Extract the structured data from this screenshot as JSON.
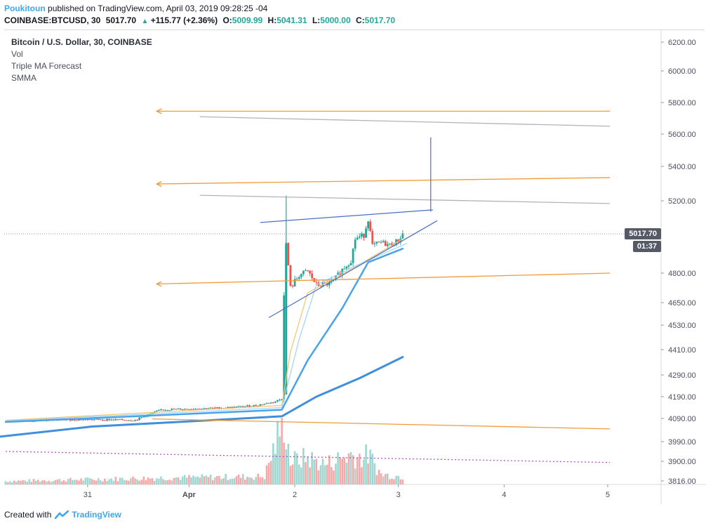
{
  "header": {
    "author": "Poukitoun",
    "published": "published on TradingView.com, April 03, 2019 09:28:25 -04",
    "symbol": "COINBASE:BTCUSD, 30",
    "last": "5017.70",
    "change": "+115.77 (+2.36%)",
    "o_label": "O:",
    "o_value": "5009.99",
    "h_label": "H:",
    "h_value": "5041.31",
    "l_label": "L:",
    "l_value": "5000.00",
    "c_label": "C:",
    "c_value": "5017.70"
  },
  "legend": {
    "title": "Bitcoin / U.S. Dollar, 30, COINBASE",
    "items": [
      "Vol",
      "Triple MA Forecast",
      "SMMA"
    ]
  },
  "price_badge": "5017.70",
  "time_badge": "01:37",
  "footer": {
    "created_with": "Created with",
    "brand": "TradingView"
  },
  "colors": {
    "up": "#26a69a",
    "down": "#ef5350",
    "ma_fast": "#f5c26b",
    "ma_mid": "#9fd3f7",
    "ma_slow": "#4aa3e8",
    "smma": "#3f8fdc",
    "orange_lines": "#f29a38",
    "gray_lines": "#b0b3ba",
    "wedge": "#4a6fc7",
    "purple": "#b452c8"
  },
  "chart_data": {
    "type": "candlestick",
    "title": "Bitcoin / U.S. Dollar, 30, COINBASE",
    "y_axis_ticks": [
      6200,
      6000,
      5800,
      5600,
      5400,
      5200,
      4800,
      4650,
      4530,
      4410,
      4290,
      4190,
      4090,
      3990,
      3900,
      3816
    ],
    "x_axis_ticks": [
      "31",
      "Apr",
      "2",
      "3",
      "4",
      "5"
    ],
    "last_price": 5017.7,
    "price_path": [
      {
        "t": 0,
        "p": 4080
      },
      {
        "t": 8,
        "p": 4082
      },
      {
        "t": 16,
        "p": 4085
      },
      {
        "t": 24,
        "p": 4085
      },
      {
        "t": 30,
        "p": 4083
      },
      {
        "t": 36,
        "p": 4130
      },
      {
        "t": 44,
        "p": 4135
      },
      {
        "t": 52,
        "p": 4140
      },
      {
        "t": 58,
        "p": 4150
      },
      {
        "t": 62,
        "p": 4165
      },
      {
        "t": 64,
        "p": 4180
      },
      {
        "t": 64.5,
        "p": 4700
      },
      {
        "t": 65,
        "p": 4960
      },
      {
        "t": 66,
        "p": 4725
      },
      {
        "t": 68,
        "p": 4790
      },
      {
        "t": 70,
        "p": 4810
      },
      {
        "t": 72,
        "p": 4740
      },
      {
        "t": 74,
        "p": 4740
      },
      {
        "t": 76,
        "p": 4760
      },
      {
        "t": 78,
        "p": 4820
      },
      {
        "t": 80,
        "p": 4870
      },
      {
        "t": 81,
        "p": 4990
      },
      {
        "t": 83,
        "p": 5010
      },
      {
        "t": 84,
        "p": 5100
      },
      {
        "t": 85,
        "p": 4950
      },
      {
        "t": 87,
        "p": 4970
      },
      {
        "t": 89,
        "p": 4955
      },
      {
        "t": 91,
        "p": 4980
      },
      {
        "t": 92,
        "p": 5017.7
      }
    ],
    "volume_path": [
      {
        "t": 0,
        "v": 0.05
      },
      {
        "t": 36,
        "v": 0.1
      },
      {
        "t": 60,
        "v": 0.12
      },
      {
        "t": 64.5,
        "v": 1.0
      },
      {
        "t": 66,
        "v": 0.35
      },
      {
        "t": 70,
        "v": 0.4
      },
      {
        "t": 74,
        "v": 0.3
      },
      {
        "t": 80,
        "v": 0.45
      },
      {
        "t": 83,
        "v": 0.4
      },
      {
        "t": 84,
        "v": 0.45
      },
      {
        "t": 87,
        "v": 0.15
      },
      {
        "t": 92,
        "v": 0.12
      }
    ],
    "ma_lines": [
      {
        "name": "ma_fast",
        "points": [
          {
            "t": 0,
            "p": 4082
          },
          {
            "t": 64,
            "p": 4150
          },
          {
            "t": 66,
            "p": 4400
          },
          {
            "t": 70,
            "p": 4700
          },
          {
            "t": 80,
            "p": 4820
          },
          {
            "t": 92,
            "p": 4990
          }
        ]
      },
      {
        "name": "ma_mid",
        "points": [
          {
            "t": 0,
            "p": 4080
          },
          {
            "t": 64,
            "p": 4140
          },
          {
            "t": 68,
            "p": 4460
          },
          {
            "t": 72,
            "p": 4740
          },
          {
            "t": 82,
            "p": 4850
          },
          {
            "t": 93,
            "p": 4965
          }
        ]
      },
      {
        "name": "ma_slow",
        "points": [
          {
            "t": 0,
            "p": 4075
          },
          {
            "t": 64,
            "p": 4130
          },
          {
            "t": 70,
            "p": 4360
          },
          {
            "t": 78,
            "p": 4620
          },
          {
            "t": 84,
            "p": 4860
          },
          {
            "t": 92,
            "p": 4935
          }
        ]
      },
      {
        "name": "smma",
        "points": [
          {
            "t": -2,
            "p": 4010
          },
          {
            "t": 20,
            "p": 4055
          },
          {
            "t": 40,
            "p": 4075
          },
          {
            "t": 64,
            "p": 4100
          },
          {
            "t": 72,
            "p": 4190
          },
          {
            "t": 82,
            "p": 4275
          },
          {
            "t": 92,
            "p": 4375
          }
        ]
      }
    ],
    "drawings": [
      {
        "kind": "arrow-line",
        "color": "orange_lines",
        "from": {
          "t": 35,
          "p": 5745
        },
        "to": {
          "t": 140,
          "p": 5745
        }
      },
      {
        "kind": "arrow-line",
        "color": "orange_lines",
        "from": {
          "t": 35,
          "p": 5298
        },
        "to": {
          "t": 140,
          "p": 5335
        }
      },
      {
        "kind": "arrow-line",
        "color": "orange_lines",
        "from": {
          "t": 35,
          "p": 4745
        },
        "to": {
          "t": 140,
          "p": 4800
        }
      },
      {
        "kind": "line",
        "color": "orange_lines",
        "from": {
          "t": 34,
          "p": 4088
        },
        "to": {
          "t": 140,
          "p": 4045
        }
      },
      {
        "kind": "line",
        "color": "gray_lines",
        "from": {
          "t": 45,
          "p": 5710
        },
        "to": {
          "t": 140,
          "p": 5650
        }
      },
      {
        "kind": "line",
        "color": "gray_lines",
        "from": {
          "t": 45,
          "p": 5232
        },
        "to": {
          "t": 140,
          "p": 5185
        }
      },
      {
        "kind": "line",
        "color": "wedge",
        "from": {
          "t": 59,
          "p": 5080
        },
        "to": {
          "t": 99,
          "p": 5150
        }
      },
      {
        "kind": "line",
        "color": "wedge",
        "from": {
          "t": 61,
          "p": 4570
        },
        "to": {
          "t": 100,
          "p": 5090
        }
      },
      {
        "kind": "line",
        "color": "wedge",
        "from": {
          "t": 98.5,
          "p": 5580
        },
        "to": {
          "t": 98.5,
          "p": 5140
        }
      },
      {
        "kind": "dotted",
        "color": "purple",
        "from": {
          "t": 0,
          "p": 3945
        },
        "to": {
          "t": 140,
          "p": 3895
        }
      }
    ]
  }
}
